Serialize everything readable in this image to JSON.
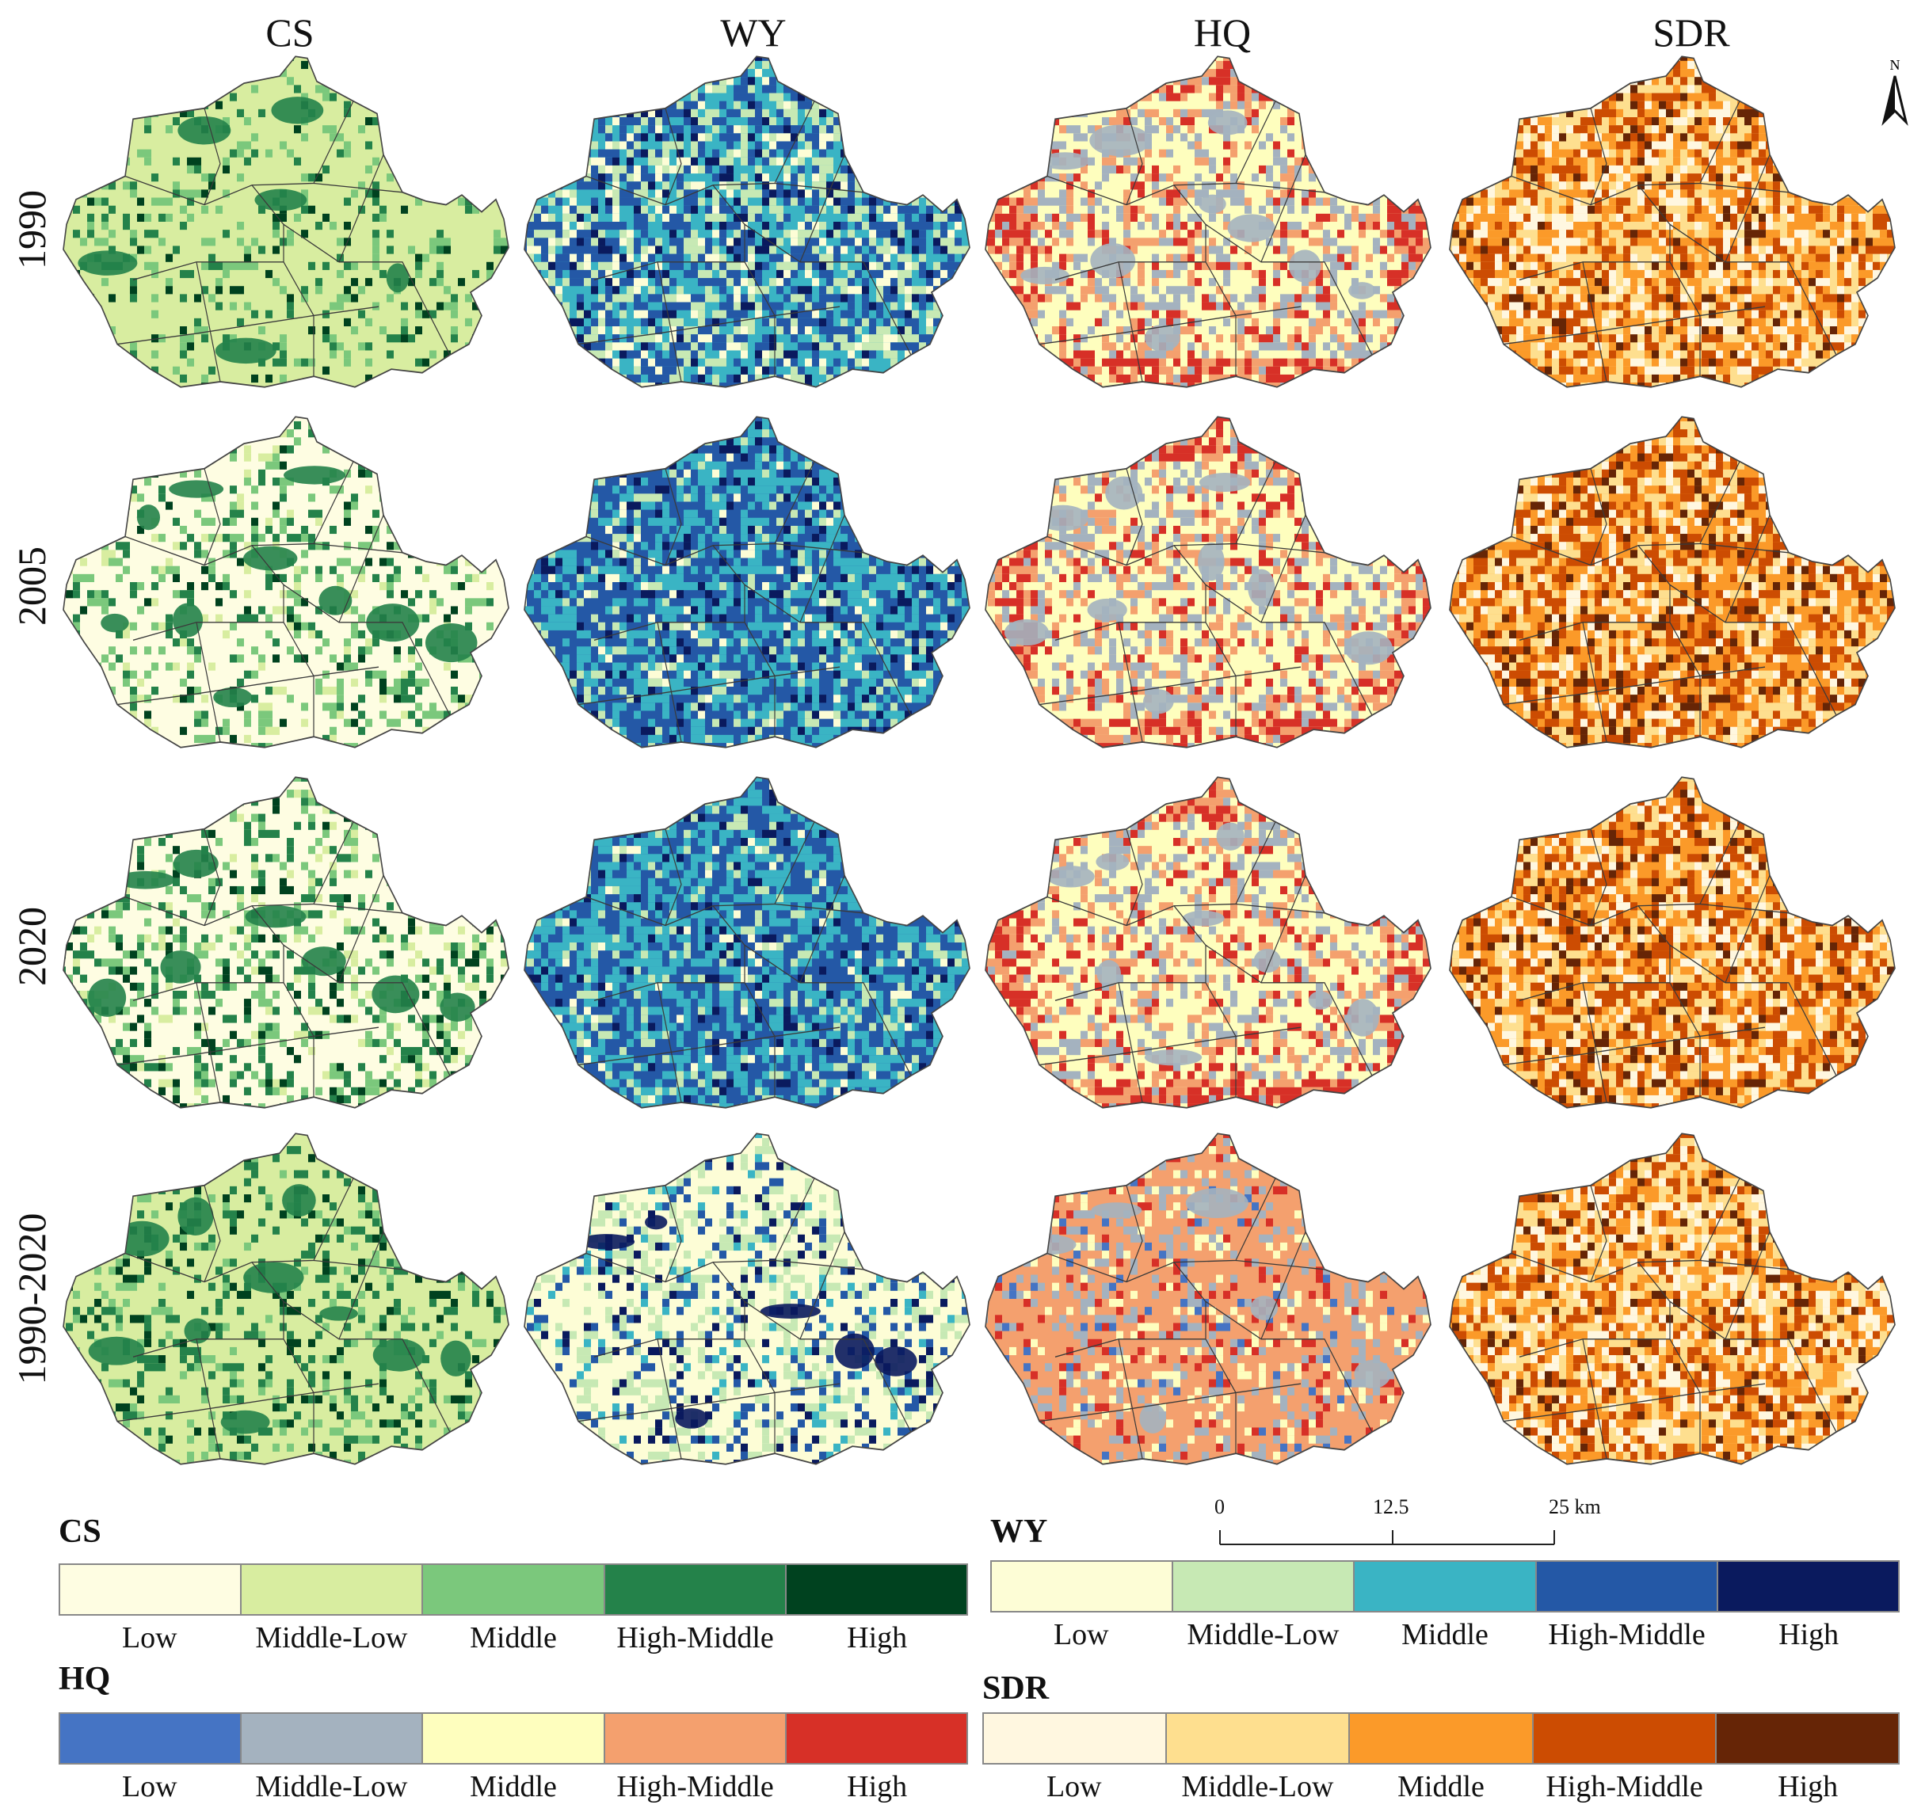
{
  "columns": [
    {
      "key": "cs",
      "label": "CS"
    },
    {
      "key": "wy",
      "label": "WY"
    },
    {
      "key": "hq",
      "label": "HQ"
    },
    {
      "key": "sdr",
      "label": "SDR"
    }
  ],
  "rows": [
    "1990",
    "2005",
    "2020",
    "1990-2020"
  ],
  "north_label": "N",
  "scale": {
    "labels": [
      "0",
      "12.5",
      "25 km"
    ]
  },
  "palettes": {
    "cs": [
      "#fefde2",
      "#d8eda0",
      "#7bc87c",
      "#24824a",
      "#00421f"
    ],
    "wy": [
      "#fdfdd6",
      "#c7e9b4",
      "#3ab4c4",
      "#2458a6",
      "#0a1a5e"
    ],
    "hq": [
      "#4574c4",
      "#a4b2bf",
      "#fefebe",
      "#f4a06e",
      "#d73027"
    ],
    "sdr": [
      "#fff7e0",
      "#fedf8f",
      "#fb9a29",
      "#cc4c02",
      "#662506"
    ]
  },
  "legends": [
    {
      "title": "CS",
      "palette": "cs",
      "labels": [
        "Low",
        "Middle-Low",
        "Middle",
        "High-Middle",
        "High"
      ]
    },
    {
      "title": "WY",
      "palette": "wy",
      "labels": [
        "Low",
        "Middle-Low",
        "Middle",
        "High-Middle",
        "High"
      ]
    },
    {
      "title": "HQ",
      "palette": "hq",
      "labels": [
        "Low",
        "Middle-Low",
        "Middle",
        "High-Middle",
        "High"
      ]
    },
    {
      "title": "SDR",
      "palette": "sdr",
      "labels": [
        "Low",
        "Middle-Low",
        "Middle",
        "High-Middle",
        "High"
      ]
    }
  ]
}
